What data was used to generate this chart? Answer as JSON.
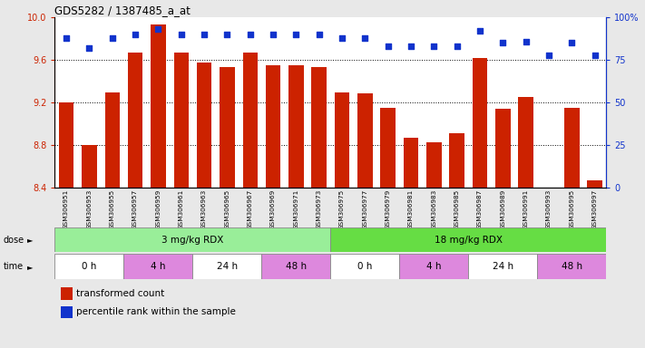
{
  "title": "GDS5282 / 1387485_a_at",
  "samples": [
    "GSM306951",
    "GSM306953",
    "GSM306955",
    "GSM306957",
    "GSM306959",
    "GSM306961",
    "GSM306963",
    "GSM306965",
    "GSM306967",
    "GSM306969",
    "GSM306971",
    "GSM306973",
    "GSM306975",
    "GSM306977",
    "GSM306979",
    "GSM306981",
    "GSM306983",
    "GSM306985",
    "GSM306987",
    "GSM306989",
    "GSM306991",
    "GSM306993",
    "GSM306995",
    "GSM306997"
  ],
  "bar_values": [
    9.2,
    8.8,
    9.3,
    9.67,
    9.93,
    9.67,
    9.58,
    9.53,
    9.67,
    9.55,
    9.55,
    9.53,
    9.3,
    9.29,
    9.15,
    8.87,
    8.83,
    8.91,
    9.62,
    9.14,
    9.25,
    8.4,
    9.15,
    8.47
  ],
  "dot_values": [
    88,
    82,
    88,
    90,
    93,
    90,
    90,
    90,
    90,
    90,
    90,
    90,
    88,
    88,
    83,
    83,
    83,
    83,
    92,
    85,
    86,
    78,
    85,
    78
  ],
  "bar_color": "#cc2200",
  "dot_color": "#1133cc",
  "ylim_left": [
    8.4,
    10.0
  ],
  "ylim_right": [
    0,
    100
  ],
  "yticks_left": [
    8.4,
    8.8,
    9.2,
    9.6,
    10.0
  ],
  "yticks_right": [
    0,
    25,
    50,
    75,
    100
  ],
  "ytick_labels_right": [
    "0",
    "25",
    "50",
    "75",
    "100%"
  ],
  "grid_vals": [
    8.8,
    9.2,
    9.6
  ],
  "dose_groups": [
    {
      "label": "3 mg/kg RDX",
      "start": 0,
      "end": 12,
      "color": "#99ee99"
    },
    {
      "label": "18 mg/kg RDX",
      "start": 12,
      "end": 24,
      "color": "#66dd44"
    }
  ],
  "time_groups": [
    {
      "label": "0 h",
      "start": 0,
      "end": 3,
      "color": "#ffffff"
    },
    {
      "label": "4 h",
      "start": 3,
      "end": 6,
      "color": "#dd88dd"
    },
    {
      "label": "24 h",
      "start": 6,
      "end": 9,
      "color": "#ffffff"
    },
    {
      "label": "48 h",
      "start": 9,
      "end": 12,
      "color": "#dd88dd"
    },
    {
      "label": "0 h",
      "start": 12,
      "end": 15,
      "color": "#ffffff"
    },
    {
      "label": "4 h",
      "start": 15,
      "end": 18,
      "color": "#dd88dd"
    },
    {
      "label": "24 h",
      "start": 18,
      "end": 21,
      "color": "#ffffff"
    },
    {
      "label": "48 h",
      "start": 21,
      "end": 24,
      "color": "#dd88dd"
    }
  ],
  "legend": [
    {
      "color": "#cc2200",
      "label": "transformed count"
    },
    {
      "color": "#1133cc",
      "label": "percentile rank within the sample"
    }
  ],
  "background_color": "#e8e8e8",
  "plot_bg": "#ffffff"
}
